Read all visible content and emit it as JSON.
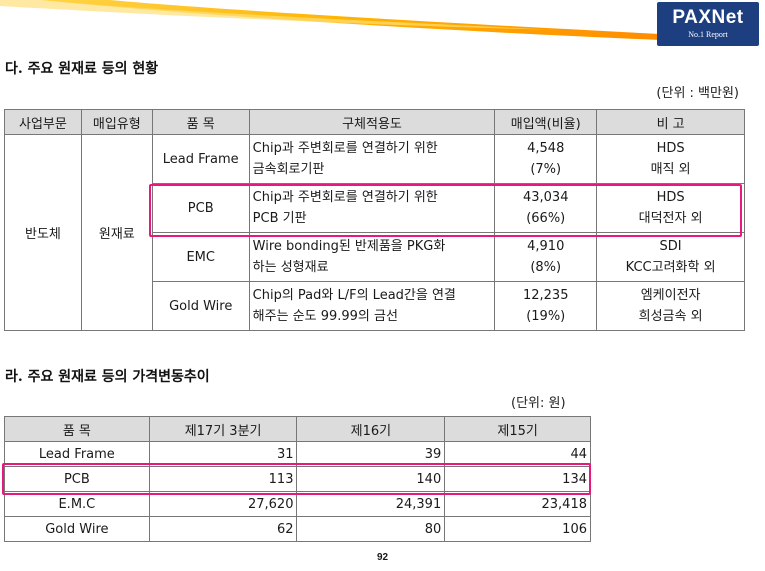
{
  "logo": {
    "text": "PAXNet",
    "sub": "No.1 Report"
  },
  "section1": {
    "title": "다. 주요 원재료 등의 현황",
    "unit": "(단위 : 백만원)",
    "headers": [
      "사업부문",
      "매입유형",
      "품   목",
      "구체적용도",
      "매입액(비율)",
      "비   고"
    ],
    "division": "반도체",
    "type": "원재료",
    "rows": [
      {
        "item": "Lead Frame",
        "use1": "Chip과 주변회로를 연결하기 위한",
        "use2": "금속회로기판",
        "amount": "4,548",
        "ratio": "(7%)",
        "note1": "HDS",
        "note2": "매직 외"
      },
      {
        "item": "PCB",
        "use1": "Chip과 주변회로를 연결하기 위한",
        "use2": "PCB 기판",
        "amount": "43,034",
        "ratio": "(66%)",
        "note1": "HDS",
        "note2": "대덕전자 외"
      },
      {
        "item": "EMC",
        "use1": "Wire bonding된 반제품을 PKG화",
        "use2": "하는 성형재료",
        "amount": "4,910",
        "ratio": "(8%)",
        "note1": "SDI",
        "note2": "KCC고려화학 외"
      },
      {
        "item": "Gold Wire",
        "use1": "Chip의 Pad와 L/F의 Lead간을 연결",
        "use2": "해주는 순도 99.99의 금선",
        "amount": "12,235",
        "ratio": "(19%)",
        "note1": "엠케이전자",
        "note2": "희성금속 외"
      }
    ]
  },
  "section2": {
    "title": "라. 주요 원재료 등의 가격변동추이",
    "unit": "(단위: 원)",
    "headers": [
      "품  목",
      "제17기 3분기",
      "제16기",
      "제15기"
    ],
    "rows": [
      {
        "item": "Lead Frame",
        "q17": "31",
        "y16": "39",
        "y15": "44"
      },
      {
        "item": "PCB",
        "q17": "113",
        "y16": "140",
        "y15": "134"
      },
      {
        "item": "E.M.C",
        "q17": "27,620",
        "y16": "24,391",
        "y15": "23,418"
      },
      {
        "item": "Gold Wire",
        "q17": "62",
        "y16": "80",
        "y15": "106"
      }
    ]
  },
  "page_number": "92",
  "colors": {
    "highlight": "#e8197d",
    "header_bg": "#dcdcdc",
    "logo_bg": "#1d3f80"
  }
}
